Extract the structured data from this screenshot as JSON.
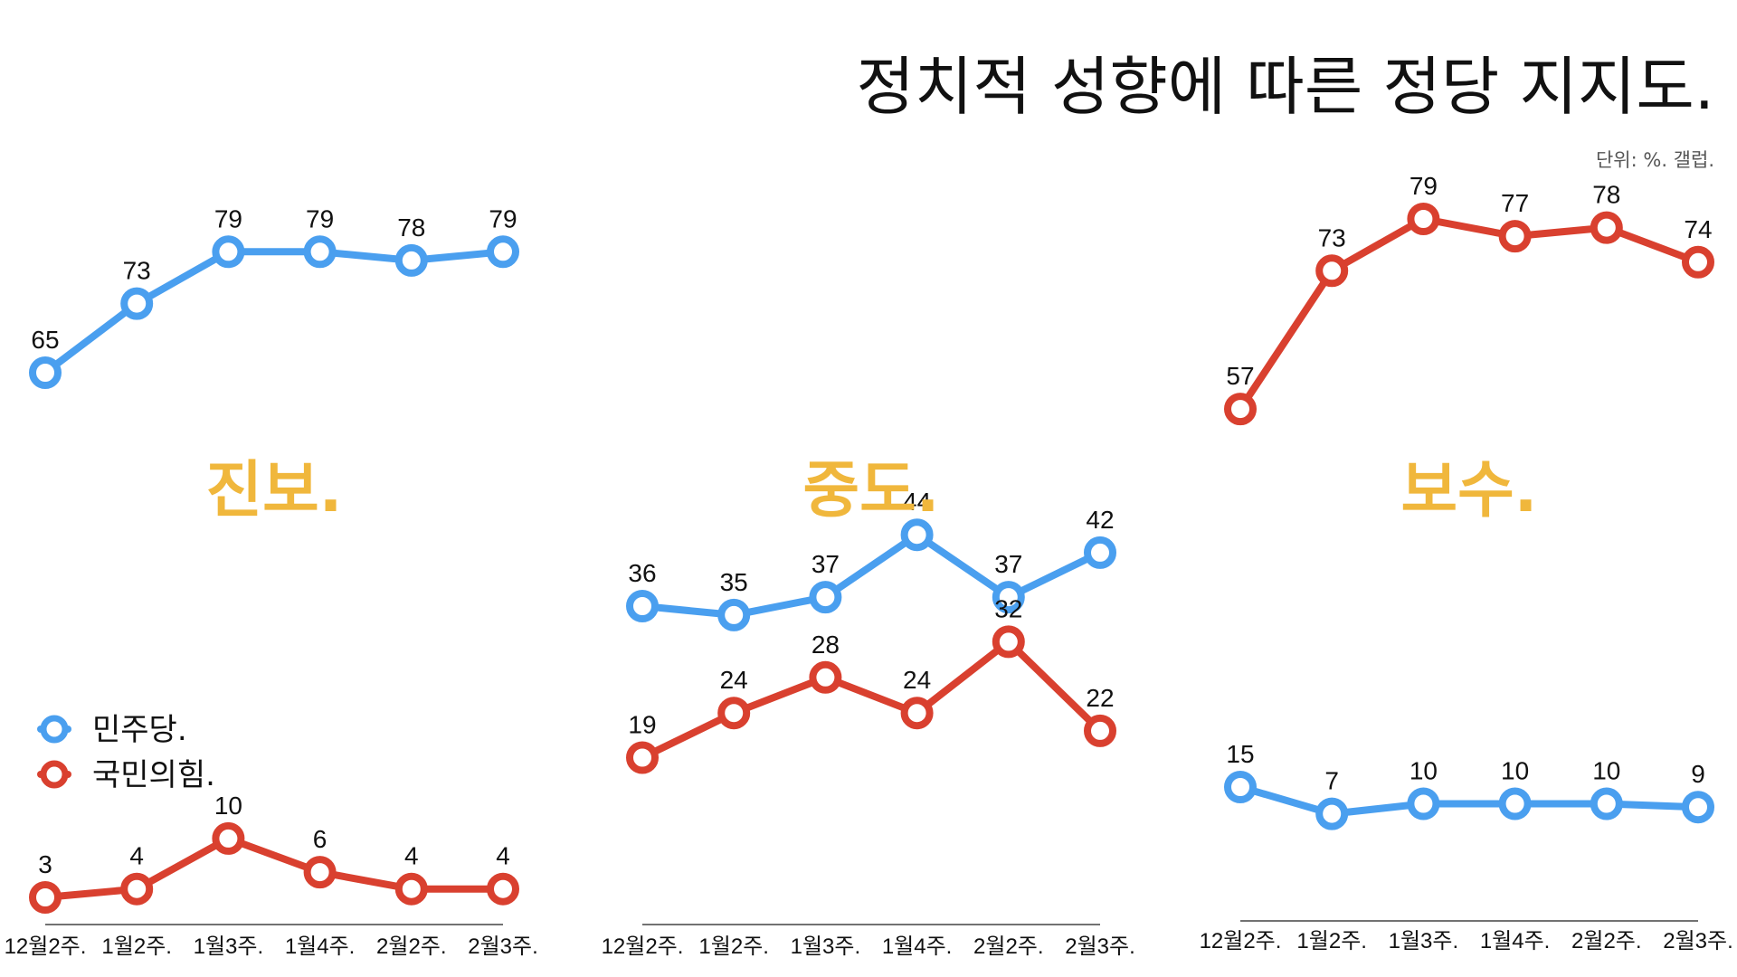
{
  "title": "정치적 성향에 따른 정당 지지도.",
  "source": "단위: %. 갤럽.",
  "colors": {
    "democratic": "#4A9FEF",
    "ppp": "#D9402F",
    "group_label": "#F0B73C",
    "axis": "#444444"
  },
  "legend": [
    {
      "label": "민주당.",
      "color": "#4A9FEF"
    },
    {
      "label": "국민의힘.",
      "color": "#D9402F"
    }
  ],
  "chart_data": [
    {
      "type": "line",
      "title": "진보.",
      "categories": [
        "12월2주.",
        "1월2주.",
        "1월3주.",
        "1월4주.",
        "2월2주.",
        "2월3주."
      ],
      "series": [
        {
          "name": "민주당.",
          "color": "#4A9FEF",
          "values": [
            65,
            73,
            79,
            79,
            78,
            79
          ]
        },
        {
          "name": "국민의힘.",
          "color": "#D9402F",
          "values": [
            3,
            4,
            10,
            6,
            4,
            4
          ]
        }
      ]
    },
    {
      "type": "line",
      "title": "중도.",
      "categories": [
        "12월2주.",
        "1월2주.",
        "1월3주.",
        "1월4주.",
        "2월2주.",
        "2월3주."
      ],
      "series": [
        {
          "name": "민주당.",
          "color": "#4A9FEF",
          "values": [
            36,
            35,
            37,
            44,
            37,
            42
          ]
        },
        {
          "name": "국민의힘.",
          "color": "#D9402F",
          "values": [
            19,
            24,
            28,
            24,
            32,
            22
          ]
        }
      ]
    },
    {
      "type": "line",
      "title": "보수.",
      "categories": [
        "12월2주.",
        "1월2주.",
        "1월3주.",
        "1월4주.",
        "2월2주.",
        "2월3주."
      ],
      "series": [
        {
          "name": "민주당.",
          "color": "#4A9FEF",
          "values": [
            15,
            7,
            10,
            10,
            10,
            9
          ]
        },
        {
          "name": "국민의힘.",
          "color": "#D9402F",
          "values": [
            57,
            73,
            79,
            77,
            78,
            74
          ]
        }
      ]
    }
  ]
}
